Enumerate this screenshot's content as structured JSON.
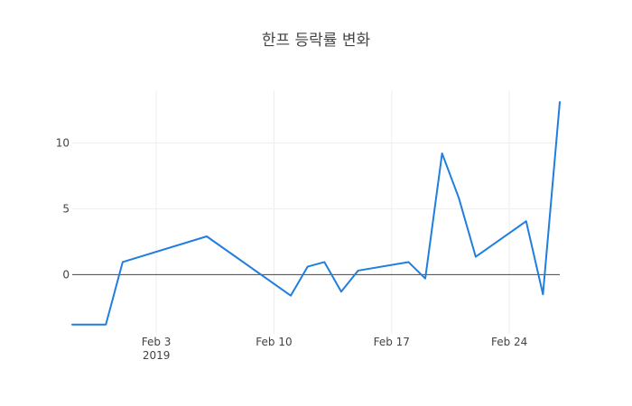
{
  "chart_data": {
    "type": "line",
    "title": "한프 등락률 변화",
    "xlabel": "",
    "ylabel": "",
    "x_axis_type": "date",
    "x_range": [
      "2019-01-29",
      "2019-02-26"
    ],
    "ylim": [
      -4.5,
      14.0
    ],
    "grid": true,
    "legend": "none",
    "colors": {
      "series": "#1f7ee0",
      "grid": "#eeeeee",
      "zero_line": "#444444",
      "text": "#444444"
    },
    "x_ticks": [
      {
        "date": "2019-02-03",
        "label": "Feb 3",
        "sublabel": "2019"
      },
      {
        "date": "2019-02-10",
        "label": "Feb 10"
      },
      {
        "date": "2019-02-17",
        "label": "Feb 17"
      },
      {
        "date": "2019-02-24",
        "label": "Feb 24"
      }
    ],
    "y_ticks": [
      {
        "value": 0,
        "label": "0"
      },
      {
        "value": 5,
        "label": "5"
      },
      {
        "value": 10,
        "label": "10"
      }
    ],
    "series": [
      {
        "points": [
          {
            "x": "2019-01-29",
            "y": -3.8
          },
          {
            "x": "2019-01-31",
            "y": -3.8
          },
          {
            "x": "2019-02-01",
            "y": 0.95
          },
          {
            "x": "2019-02-06",
            "y": 2.9
          },
          {
            "x": "2019-02-11",
            "y": -1.6
          },
          {
            "x": "2019-02-12",
            "y": 0.6
          },
          {
            "x": "2019-02-13",
            "y": 0.95
          },
          {
            "x": "2019-02-14",
            "y": -1.3
          },
          {
            "x": "2019-02-15",
            "y": 0.3
          },
          {
            "x": "2019-02-18",
            "y": 0.95
          },
          {
            "x": "2019-02-19",
            "y": -0.3
          },
          {
            "x": "2019-02-20",
            "y": 9.2
          },
          {
            "x": "2019-02-21",
            "y": 5.8
          },
          {
            "x": "2019-02-22",
            "y": 1.35
          },
          {
            "x": "2019-02-25",
            "y": 4.05
          },
          {
            "x": "2019-02-26",
            "y": -1.5
          },
          {
            "x": "2019-02-27",
            "y": 13.1
          }
        ]
      }
    ]
  }
}
